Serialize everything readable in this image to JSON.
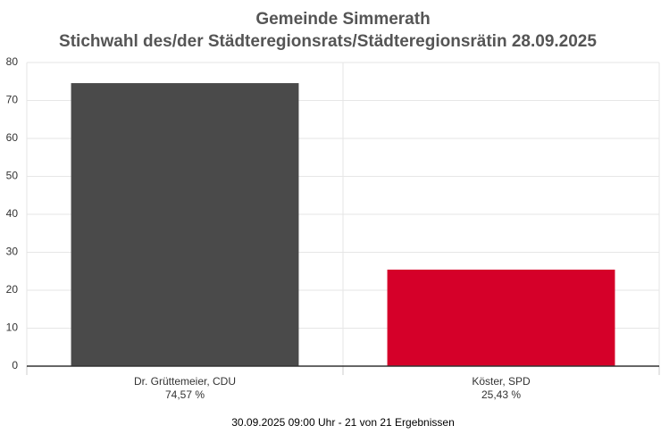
{
  "chart_data": {
    "type": "bar",
    "title": "Gemeinde Simmerath",
    "subtitle": "Stichwahl des/der Städteregionsrats/Städteregionsrätin 28.09.2025",
    "categories": [
      "Dr. Grüttemeier, CDU",
      "Köster, SPD"
    ],
    "values": [
      74.57,
      25.43
    ],
    "value_labels": [
      "74,57 %",
      "25,43 %"
    ],
    "colors": [
      "#4a4a4a",
      "#d50029"
    ],
    "ylim": [
      0,
      80
    ],
    "yticks": [
      0,
      10,
      20,
      30,
      40,
      50,
      60,
      70,
      80
    ],
    "grid": true,
    "caption": "30.09.2025 09:00 Uhr - 21 von 21 Ergebnissen"
  }
}
